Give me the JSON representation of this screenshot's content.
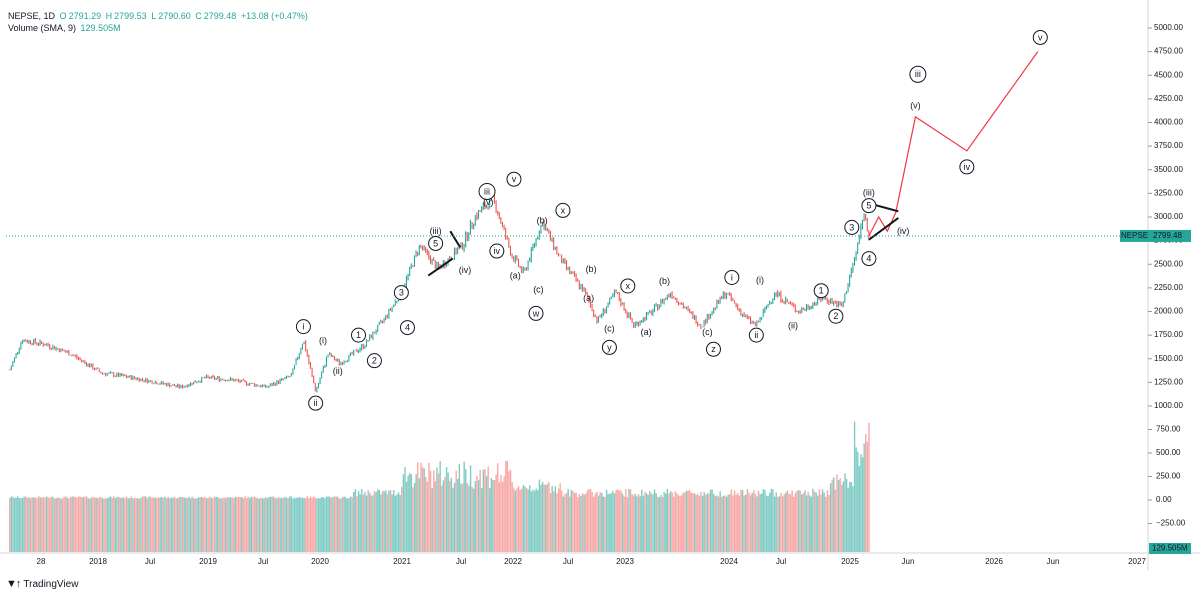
{
  "header": {
    "symbol": "NEPSE, 1D",
    "o_label": "O",
    "o": "2791.29",
    "h_label": "H",
    "h": "2799.53",
    "l_label": "L",
    "l": "2790.60",
    "c_label": "C",
    "c": "2799.48",
    "change": "+13.08 (+0.47%)",
    "volume_label": "Volume (SMA, 9)",
    "volume_value": "129.505M"
  },
  "brand": {
    "name": "TradingView"
  },
  "colors": {
    "up": "#26a69a",
    "down": "#ef5350",
    "projection": "#f23645",
    "accent": "#26a69a"
  },
  "chart_data": {
    "type": "line",
    "title": "",
    "symbol": "NEPSE",
    "last_price": 2799.48,
    "last_price_label": "NEPSE",
    "volume_last_label": "129.505M",
    "x_ticks": [
      "28",
      "2018",
      "Jul",
      "2019",
      "Jul",
      "2020",
      "2021",
      "Jul",
      "2022",
      "Jul",
      "2023",
      "2024",
      "Jul",
      "2025",
      "Jun",
      "2026",
      "Jun",
      "2027"
    ],
    "price_ticks": [
      "5000.00",
      "4750.00",
      "4500.00",
      "4250.00",
      "4000.00",
      "3750.00",
      "3500.00",
      "3250.00",
      "3000.00",
      "2750.00",
      "2500.00",
      "2250.00",
      "2000.00",
      "1750.00",
      "1500.00",
      "1250.00",
      "1000.00"
    ],
    "volume_ticks": [
      "750.00",
      "500.00",
      "250.00",
      "0.00",
      "−250.00"
    ],
    "ylim_price": [
      1000,
      5000
    ],
    "ylim_volume_millions": [
      -250,
      750
    ],
    "series": [
      {
        "type": "price_path",
        "points": [
          {
            "x": 2017.8,
            "y": 1380
          },
          {
            "x": 2017.9,
            "y": 1700
          },
          {
            "x": 2018.1,
            "y": 1650
          },
          {
            "x": 2018.3,
            "y": 1550
          },
          {
            "x": 2018.55,
            "y": 1350
          },
          {
            "x": 2018.8,
            "y": 1300
          },
          {
            "x": 2019.0,
            "y": 1250
          },
          {
            "x": 2019.2,
            "y": 1200
          },
          {
            "x": 2019.4,
            "y": 1300
          },
          {
            "x": 2019.6,
            "y": 1280
          },
          {
            "x": 2019.9,
            "y": 1200
          },
          {
            "x": 2020.1,
            "y": 1320
          },
          {
            "x": 2020.2,
            "y": 1700
          },
          {
            "x": 2020.3,
            "y": 1150
          },
          {
            "x": 2020.4,
            "y": 1550
          },
          {
            "x": 2020.5,
            "y": 1450
          },
          {
            "x": 2020.7,
            "y": 1650
          },
          {
            "x": 2020.85,
            "y": 1900
          },
          {
            "x": 2021.0,
            "y": 2200
          },
          {
            "x": 2021.15,
            "y": 2700
          },
          {
            "x": 2021.3,
            "y": 2450
          },
          {
            "x": 2021.5,
            "y": 2700
          },
          {
            "x": 2021.6,
            "y": 3000
          },
          {
            "x": 2021.75,
            "y": 3200
          },
          {
            "x": 2021.9,
            "y": 2600
          },
          {
            "x": 2022.0,
            "y": 2400
          },
          {
            "x": 2022.15,
            "y": 2950
          },
          {
            "x": 2022.3,
            "y": 2550
          },
          {
            "x": 2022.5,
            "y": 2200
          },
          {
            "x": 2022.6,
            "y": 1900
          },
          {
            "x": 2022.75,
            "y": 2200
          },
          {
            "x": 2022.9,
            "y": 1850
          },
          {
            "x": 2023.05,
            "y": 2000
          },
          {
            "x": 2023.2,
            "y": 2200
          },
          {
            "x": 2023.45,
            "y": 1850
          },
          {
            "x": 2023.65,
            "y": 2200
          },
          {
            "x": 2023.8,
            "y": 1950
          },
          {
            "x": 2023.9,
            "y": 1850
          },
          {
            "x": 2024.05,
            "y": 2200
          },
          {
            "x": 2024.25,
            "y": 2000
          },
          {
            "x": 2024.45,
            "y": 2150
          },
          {
            "x": 2024.6,
            "y": 2050
          },
          {
            "x": 2024.72,
            "y": 2650
          },
          {
            "x": 2024.78,
            "y": 3050
          },
          {
            "x": 2024.82,
            "y": 2800
          }
        ]
      },
      {
        "type": "projection",
        "points": [
          {
            "x": 2024.82,
            "y": 2800
          },
          {
            "x": 2024.9,
            "y": 3000
          },
          {
            "x": 2024.97,
            "y": 2850
          },
          {
            "x": 2025.04,
            "y": 3050
          },
          {
            "x": 2025.2,
            "y": 4060
          },
          {
            "x": 2025.62,
            "y": 3700
          },
          {
            "x": 2026.2,
            "y": 4750
          }
        ]
      }
    ],
    "wave_labels": [
      {
        "text": "i",
        "circled": true,
        "x": 2020.2,
        "y": 1840
      },
      {
        "text": "ii",
        "circled": true,
        "x": 2020.3,
        "y": 1030
      },
      {
        "text": "(i)",
        "circled": false,
        "x": 2020.36,
        "y": 1690
      },
      {
        "text": "(ii)",
        "circled": false,
        "x": 2020.48,
        "y": 1370
      },
      {
        "text": "1",
        "circled": true,
        "x": 2020.65,
        "y": 1750
      },
      {
        "text": "2",
        "circled": true,
        "x": 2020.78,
        "y": 1480
      },
      {
        "text": "3",
        "circled": true,
        "x": 2021.0,
        "y": 2200
      },
      {
        "text": "4",
        "circled": true,
        "x": 2021.05,
        "y": 1830
      },
      {
        "text": "5",
        "circled": true,
        "x": 2021.28,
        "y": 2720
      },
      {
        "text": "(iii)",
        "circled": false,
        "x": 2021.28,
        "y": 2850
      },
      {
        "text": "(iv)",
        "circled": false,
        "x": 2021.52,
        "y": 2440
      },
      {
        "text": "iii",
        "circled": true,
        "x": 2021.7,
        "y": 3270
      },
      {
        "text": "(v)",
        "circled": false,
        "x": 2021.71,
        "y": 3160
      },
      {
        "text": "iv",
        "circled": true,
        "x": 2021.78,
        "y": 2640
      },
      {
        "text": "v",
        "circled": true,
        "x": 2021.92,
        "y": 3400
      },
      {
        "text": "(a)",
        "circled": false,
        "x": 2021.93,
        "y": 2380
      },
      {
        "text": "(b)",
        "circled": false,
        "x": 2022.15,
        "y": 2960
      },
      {
        "text": "(c)",
        "circled": false,
        "x": 2022.12,
        "y": 2230
      },
      {
        "text": "w",
        "circled": true,
        "x": 2022.1,
        "y": 1980
      },
      {
        "text": "x",
        "circled": true,
        "x": 2022.32,
        "y": 3070
      },
      {
        "text": "(b)",
        "circled": false,
        "x": 2022.55,
        "y": 2450
      },
      {
        "text": "(a)",
        "circled": false,
        "x": 2022.53,
        "y": 2140
      },
      {
        "text": "(c)",
        "circled": false,
        "x": 2022.7,
        "y": 1820
      },
      {
        "text": "y",
        "circled": true,
        "x": 2022.7,
        "y": 1620
      },
      {
        "text": "x",
        "circled": true,
        "x": 2022.85,
        "y": 2270
      },
      {
        "text": "(a)",
        "circled": false,
        "x": 2023.0,
        "y": 1780
      },
      {
        "text": "(b)",
        "circled": false,
        "x": 2023.15,
        "y": 2320
      },
      {
        "text": "(c)",
        "circled": false,
        "x": 2023.5,
        "y": 1780
      },
      {
        "text": "z",
        "circled": true,
        "x": 2023.55,
        "y": 1600
      },
      {
        "text": "i",
        "circled": true,
        "x": 2023.7,
        "y": 2360
      },
      {
        "text": "ii",
        "circled": true,
        "x": 2023.9,
        "y": 1750
      },
      {
        "text": "(i)",
        "circled": false,
        "x": 2023.93,
        "y": 2330
      },
      {
        "text": "(ii)",
        "circled": false,
        "x": 2024.2,
        "y": 1850
      },
      {
        "text": "1",
        "circled": true,
        "x": 2024.43,
        "y": 2220
      },
      {
        "text": "2",
        "circled": true,
        "x": 2024.55,
        "y": 1950
      },
      {
        "text": "3",
        "circled": true,
        "x": 2024.68,
        "y": 2890
      },
      {
        "text": "4",
        "circled": true,
        "x": 2024.82,
        "y": 2560
      },
      {
        "text": "5",
        "circled": true,
        "x": 2024.82,
        "y": 3120
      },
      {
        "text": "(iii)",
        "circled": false,
        "x": 2024.82,
        "y": 3260
      },
      {
        "text": "(iv)",
        "circled": false,
        "x": 2025.1,
        "y": 2850
      },
      {
        "text": "(v)",
        "circled": false,
        "x": 2025.2,
        "y": 4180
      },
      {
        "text": "iii",
        "circled": true,
        "x": 2025.22,
        "y": 4510
      },
      {
        "text": "iv",
        "circled": true,
        "x": 2025.62,
        "y": 3530
      },
      {
        "text": "v",
        "circled": true,
        "x": 2026.22,
        "y": 4900
      }
    ],
    "trendlines": [
      {
        "points": [
          {
            "x": 2021.22,
            "y": 2380
          },
          {
            "x": 2021.42,
            "y": 2560
          }
        ]
      },
      {
        "points": [
          {
            "x": 2021.4,
            "y": 2850
          },
          {
            "x": 2021.48,
            "y": 2680
          }
        ]
      },
      {
        "points": [
          {
            "x": 2024.82,
            "y": 2760
          },
          {
            "x": 2025.06,
            "y": 2990
          }
        ]
      },
      {
        "points": [
          {
            "x": 2024.86,
            "y": 3130
          },
          {
            "x": 2025.06,
            "y": 3060
          }
        ]
      }
    ],
    "grid": false,
    "legend": "none"
  }
}
